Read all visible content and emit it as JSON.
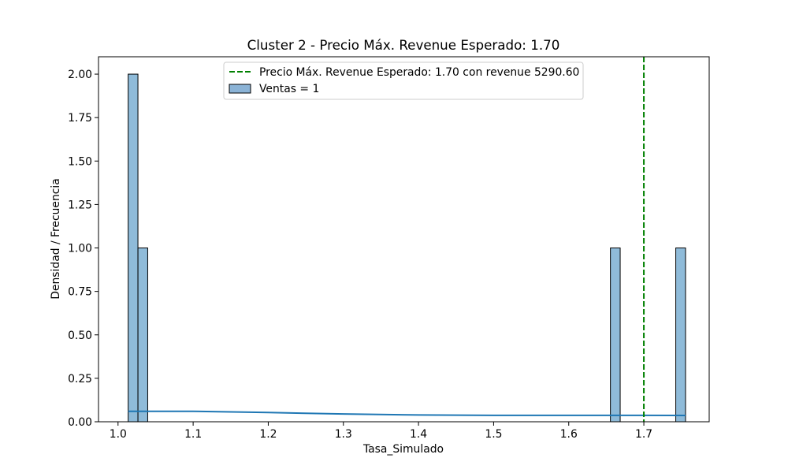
{
  "chart_data": {
    "type": "histogram",
    "title": "Cluster 2 - Precio Máx. Revenue Esperado: 1.70",
    "xlabel": "Tasa_Simulado",
    "ylabel": "Densidad / Frecuencia",
    "xlim": [
      0.974,
      1.787
    ],
    "ylim": [
      0,
      2.1
    ],
    "grid": false,
    "x_ticks": [
      "1.0",
      "1.1",
      "1.2",
      "1.3",
      "1.4",
      "1.5",
      "1.6",
      "1.7"
    ],
    "y_ticks": [
      "0.00",
      "0.25",
      "0.50",
      "0.75",
      "1.00",
      "1.25",
      "1.50",
      "1.75",
      "2.00"
    ],
    "legend_position": "top-center",
    "legend": [
      {
        "label": "Precio Máx. Revenue Esperado: 1.70 con revenue 5290.60",
        "style": "dashed-line",
        "color": "#008000"
      },
      {
        "label": "Ventas = 1",
        "style": "patch",
        "color": "#7ba6cc"
      }
    ],
    "bars": [
      {
        "x0": 1.0135,
        "x1": 1.0265,
        "value": 2
      },
      {
        "x0": 1.0265,
        "x1": 1.0395,
        "value": 1
      },
      {
        "x0": 1.6555,
        "x1": 1.6685,
        "value": 1
      },
      {
        "x0": 1.7425,
        "x1": 1.7555,
        "value": 1
      }
    ],
    "kde_line": {
      "color": "#1f77b4",
      "x": [
        1.0135,
        1.1,
        1.2,
        1.3,
        1.4,
        1.5,
        1.6,
        1.7,
        1.7555
      ],
      "y": [
        0.06,
        0.06,
        0.053,
        0.045,
        0.039,
        0.037,
        0.037,
        0.037,
        0.036
      ]
    },
    "vertical_line": {
      "x": 1.7,
      "color": "#008000",
      "style": "dashed"
    }
  }
}
